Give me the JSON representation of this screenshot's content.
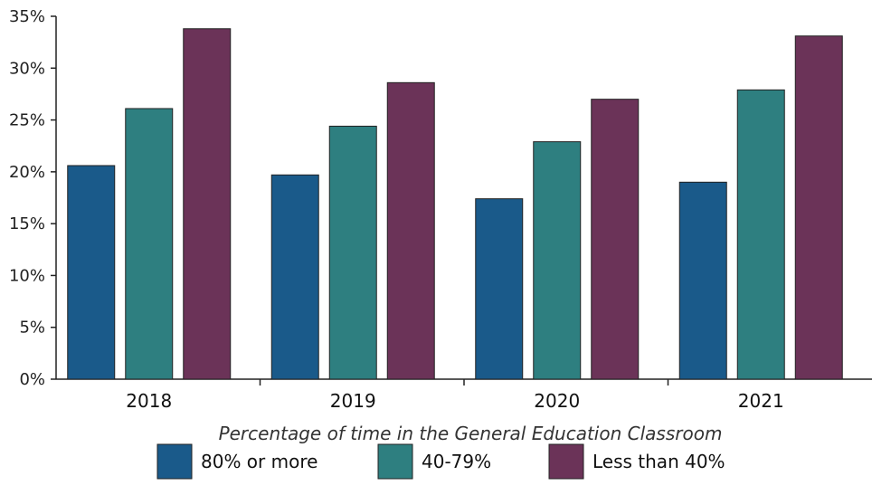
{
  "chart_data": {
    "type": "bar",
    "categories": [
      "2018",
      "2019",
      "2020",
      "2021"
    ],
    "series": [
      {
        "name": "80% or more",
        "color": "#1a5a8a",
        "values": [
          20.6,
          19.7,
          17.4,
          19.0
        ]
      },
      {
        "name": "40-79%",
        "color": "#2e7f80",
        "values": [
          26.1,
          24.4,
          22.9,
          27.9
        ]
      },
      {
        "name": "Less than 40%",
        "color": "#6b3358",
        "values": [
          33.8,
          28.6,
          27.0,
          33.1
        ]
      }
    ],
    "ylim": [
      0,
      35
    ],
    "yticks": [
      0,
      5,
      10,
      15,
      20,
      25,
      30,
      35
    ],
    "ytick_labels": [
      "0%",
      "5%",
      "10%",
      "15%",
      "20%",
      "25%",
      "30%",
      "35%"
    ],
    "xlabel": "Percentage of time in the General Education Classroom",
    "ylabel": "",
    "grid": false,
    "legend_position": "bottom"
  }
}
